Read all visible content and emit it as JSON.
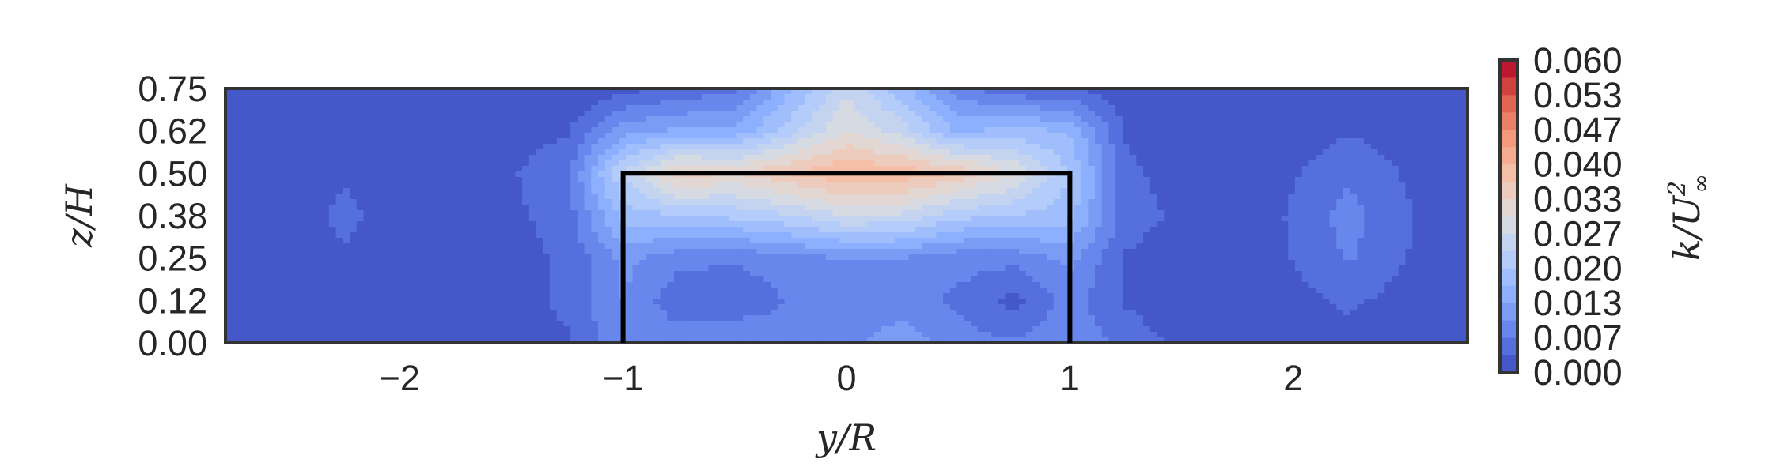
{
  "chart_data": {
    "type": "contour",
    "xlabel": "y/R",
    "ylabel": "z/H",
    "colorbar_label": "k/U∞²",
    "colorbar_label_parts": {
      "k": "k",
      "slash": "/",
      "U": "U",
      "sup": "2",
      "sub": "∞"
    },
    "xlim": [
      -2.78,
      2.78
    ],
    "ylim": [
      0,
      0.75
    ],
    "x_ticks": [
      -2,
      -1,
      0,
      1,
      2
    ],
    "x_tick_labels": [
      "−2",
      "−1",
      "0",
      "1",
      "2"
    ],
    "y_ticks": [
      0.0,
      0.125,
      0.25,
      0.375,
      0.5,
      0.625,
      0.75
    ],
    "y_tick_labels": [
      "0.00",
      "0.12",
      "0.25",
      "0.38",
      "0.50",
      "0.62",
      "0.75"
    ],
    "colorbar_range": [
      0.0,
      0.06
    ],
    "colorbar_ticks": [
      0.0,
      0.00667,
      0.01333,
      0.02,
      0.02667,
      0.03333,
      0.04,
      0.04667,
      0.05333,
      0.06
    ],
    "colorbar_tick_labels": [
      "0.000",
      "0.007",
      "0.013",
      "0.020",
      "0.027",
      "0.033",
      "0.040",
      "0.047",
      "0.053",
      "0.060"
    ],
    "colormap": "coolwarm",
    "levels": 18,
    "grid": false,
    "turbine_outline": {
      "y": [
        -1,
        -1,
        1,
        1
      ],
      "z": [
        0,
        0.5,
        0.5,
        0
      ]
    },
    "field": {
      "y": [
        -2.75,
        -2.25,
        -1.75,
        -1.25,
        -1.0,
        -0.75,
        -0.5,
        -0.25,
        0.0,
        0.25,
        0.5,
        0.75,
        1.0,
        1.25,
        1.75,
        2.25,
        2.75
      ],
      "z": [
        0.0,
        0.125,
        0.25,
        0.375,
        0.5,
        0.625,
        0.75
      ],
      "k": [
        [
          0.0,
          0.0,
          0.0,
          0.003,
          0.01,
          0.009,
          0.01,
          0.008,
          0.009,
          0.012,
          0.008,
          0.007,
          0.01,
          0.005,
          0.0,
          0.002,
          0.0
        ],
        [
          0.0,
          0.002,
          0.0,
          0.004,
          0.01,
          0.004,
          0.004,
          0.007,
          0.008,
          0.008,
          0.006,
          0.002,
          0.008,
          0.003,
          0.0,
          0.004,
          0.0
        ],
        [
          0.0,
          0.003,
          0.0,
          0.004,
          0.011,
          0.008,
          0.007,
          0.009,
          0.01,
          0.01,
          0.008,
          0.008,
          0.011,
          0.003,
          0.0,
          0.007,
          0.0
        ],
        [
          0.0,
          0.004,
          0.0,
          0.005,
          0.018,
          0.02,
          0.021,
          0.023,
          0.027,
          0.026,
          0.021,
          0.02,
          0.018,
          0.005,
          0.0,
          0.008,
          0.0
        ],
        [
          0.0,
          0.003,
          0.0,
          0.006,
          0.024,
          0.035,
          0.033,
          0.037,
          0.04,
          0.039,
          0.036,
          0.03,
          0.02,
          0.004,
          0.0,
          0.006,
          0.0
        ],
        [
          0.0,
          0.0,
          0.0,
          0.003,
          0.012,
          0.014,
          0.014,
          0.022,
          0.03,
          0.025,
          0.016,
          0.018,
          0.016,
          0.003,
          0.0,
          0.003,
          0.0
        ],
        [
          0.0,
          0.001,
          0.0,
          0.0,
          0.002,
          0.004,
          0.006,
          0.016,
          0.026,
          0.018,
          0.008,
          0.004,
          0.004,
          0.0,
          0.0,
          0.0,
          0.0
        ]
      ]
    }
  }
}
